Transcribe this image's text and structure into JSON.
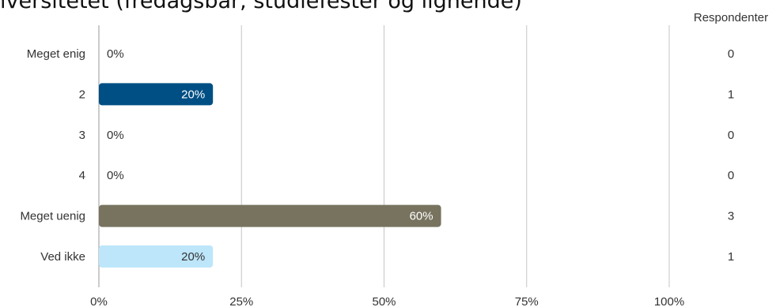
{
  "chart_data": {
    "type": "bar",
    "orientation": "horizontal",
    "title": "iversitetet (fredagsbar, studiefester og lignende)",
    "categories": [
      "Meget enig",
      "2",
      "3",
      "4",
      "Meget uenig",
      "Ved ikke"
    ],
    "values": [
      0,
      20,
      0,
      0,
      60,
      20
    ],
    "value_labels": [
      "0%",
      "20%",
      "0%",
      "0%",
      "60%",
      "20%"
    ],
    "bar_colors": [
      "#004f84",
      "#004f84",
      "#004f84",
      "#004f84",
      "#78735f",
      "#bde6fa"
    ],
    "label_colors": [
      "#333333",
      "#ffffff",
      "#333333",
      "#333333",
      "#ffffff",
      "#333333"
    ],
    "respondents_header": "Respondenter",
    "respondents": [
      "0",
      "1",
      "0",
      "0",
      "3",
      "1"
    ],
    "xlim": [
      0,
      100
    ],
    "xticks": [
      0,
      25,
      50,
      75,
      100
    ],
    "xtick_labels": [
      "0%",
      "25%",
      "50%",
      "75%",
      "100%"
    ],
    "grid": true,
    "legend": "none"
  }
}
